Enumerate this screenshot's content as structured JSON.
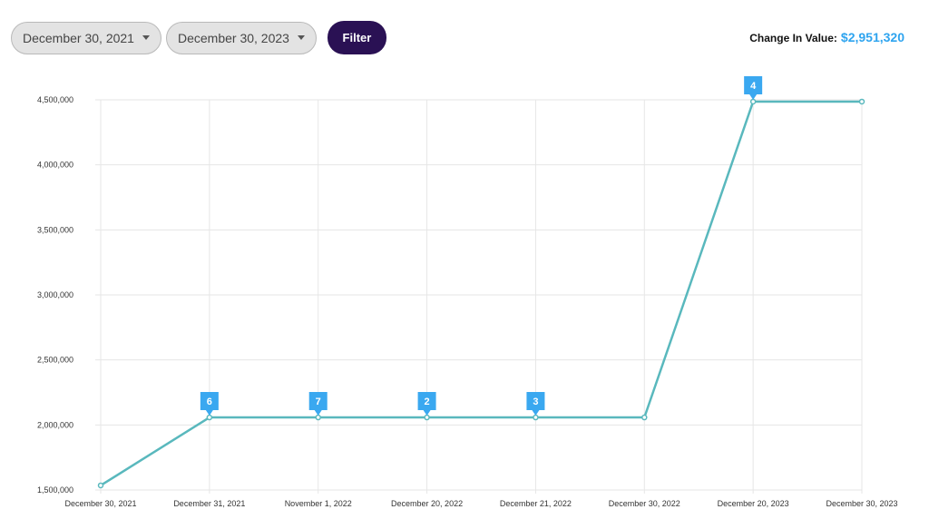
{
  "filters": {
    "start_date": "December 30, 2021",
    "end_date": "December 30, 2023",
    "filter_label": "Filter"
  },
  "summary": {
    "change_label": "Change In Value:",
    "change_value": "$2,951,320"
  },
  "colors": {
    "line": "#59b8bd",
    "flag": "#3aa8f0",
    "filter_button": "#2a1154",
    "change_value": "#2ea4ef"
  },
  "chart_data": {
    "type": "line",
    "categories": [
      "December 30, 2021",
      "December 31, 2021",
      "November 1, 2022",
      "December 20, 2022",
      "December 21, 2022",
      "December 30, 2022",
      "December 20, 2023",
      "December 30, 2023"
    ],
    "values": [
      1535000,
      2058000,
      2058000,
      2058000,
      2058000,
      2058000,
      4486320,
      4486320
    ],
    "flags": [
      null,
      "6",
      "7",
      "2",
      "3",
      null,
      "4",
      null
    ],
    "yticks": [
      "4,500,000",
      "4,000,000",
      "3,500,000",
      "3,000,000",
      "2,500,000",
      "2,000,000",
      "1,500,000"
    ],
    "ytick_values": [
      4500000,
      4000000,
      3500000,
      3000000,
      2500000,
      2000000,
      1500000
    ],
    "ylim": [
      1500000,
      4500000
    ],
    "grid": true,
    "legend": "none"
  }
}
